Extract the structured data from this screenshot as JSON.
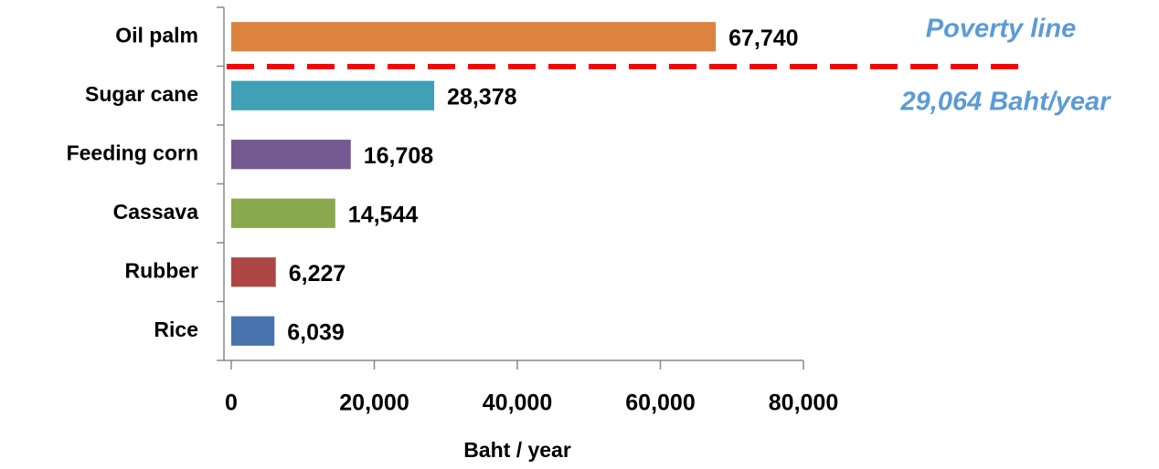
{
  "chart_data": {
    "type": "bar",
    "orientation": "horizontal",
    "categories": [
      "Oil palm",
      "Sugar cane",
      "Feeding corn",
      "Cassava",
      "Rubber",
      "Rice"
    ],
    "values": [
      67740,
      28378,
      16708,
      14544,
      6227,
      6039
    ],
    "value_labels": [
      "67,740",
      "28,378",
      "16,708",
      "14,544",
      "6,227",
      "6,039"
    ],
    "colors": [
      "#dd8340",
      "#42a0b4",
      "#73598f",
      "#8aa84e",
      "#ad4745",
      "#4873ae"
    ],
    "x_label": "Baht / year",
    "xlim": [
      0,
      80000
    ],
    "xticks": [
      0,
      {
        "value": 20000,
        "label": "20,000"
      },
      {
        "value": 40000,
        "label": "40,000"
      },
      {
        "value": 60000,
        "label": "60,000"
      },
      {
        "value": 80000,
        "label": "80,000"
      }
    ],
    "annotations": [
      "Poverty line",
      "29,064 Baht/year"
    ]
  }
}
